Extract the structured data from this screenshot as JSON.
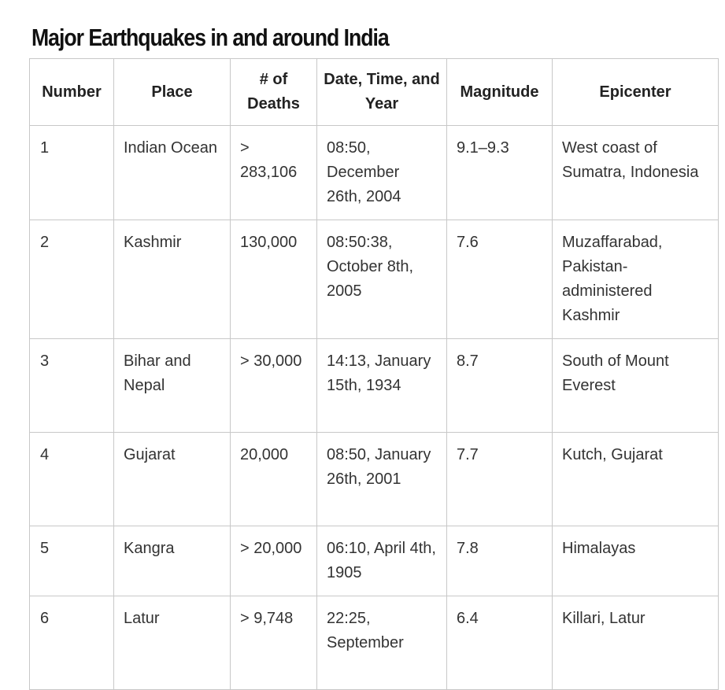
{
  "title": "Major Earthquakes in and around India",
  "table": {
    "headers": {
      "number": "Number",
      "place": "Place",
      "deaths": "# of Deaths",
      "date": "Date, Time, and Year",
      "magnitude": "Magnitude",
      "epicenter": "Epicenter"
    },
    "rows": [
      {
        "number": "1",
        "place": "Indian Ocean",
        "deaths": "> 283,106",
        "date": "08:50, December 26th, 2004",
        "magnitude": "9.1–9.3",
        "epicenter": "West coast of Sumatra, Indonesia"
      },
      {
        "number": "2",
        "place": "Kashmir",
        "deaths": "130,000",
        "date": "08:50:38, October 8th, 2005",
        "magnitude": "7.6",
        "epicenter": "Muzaffarabad, Pakistan-administered Kashmir"
      },
      {
        "number": "3",
        "place": "Bihar and Nepal",
        "deaths": "> 30,000",
        "date": "14:13, January 15th, 1934",
        "magnitude": "8.7",
        "epicenter": "South of Mount Everest"
      },
      {
        "number": "4",
        "place": "Gujarat",
        "deaths": "20,000",
        "date": "08:50, January 26th, 2001",
        "magnitude": "7.7",
        "epicenter": "Kutch, Gujarat"
      },
      {
        "number": "5",
        "place": "Kangra",
        "deaths": "> 20,000",
        "date": "06:10, April 4th, 1905",
        "magnitude": "7.8",
        "epicenter": "Himalayas"
      },
      {
        "number": "6",
        "place": "Latur",
        "deaths": "> 9,748",
        "date": "22:25, September",
        "magnitude": "6.4",
        "epicenter": "Killari, Latur"
      }
    ]
  }
}
